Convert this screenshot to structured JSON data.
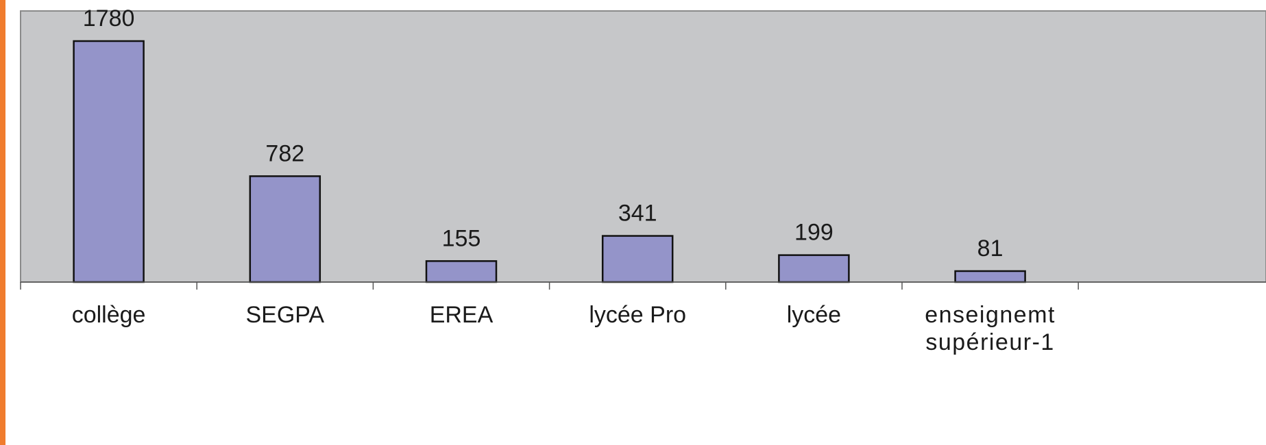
{
  "colors": {
    "plot_background": "#c6c7c9",
    "bar_fill": "#9494c9",
    "bar_stroke": "#111111",
    "left_border": "#f07c2e",
    "axis": "#555555"
  },
  "chart_data": {
    "type": "bar",
    "title": "",
    "xlabel": "",
    "ylabel": "",
    "categories": [
      [
        "collège"
      ],
      [
        "SEGPA"
      ],
      [
        "EREA"
      ],
      [
        "lycée Pro"
      ],
      [
        "lycée"
      ],
      [
        "enseignemt",
        "supérieur-1"
      ]
    ],
    "values": [
      1780,
      782,
      155,
      341,
      199,
      81
    ],
    "ylim": [
      0,
      2000
    ],
    "grid": false,
    "data_labels": true,
    "legend": false
  }
}
